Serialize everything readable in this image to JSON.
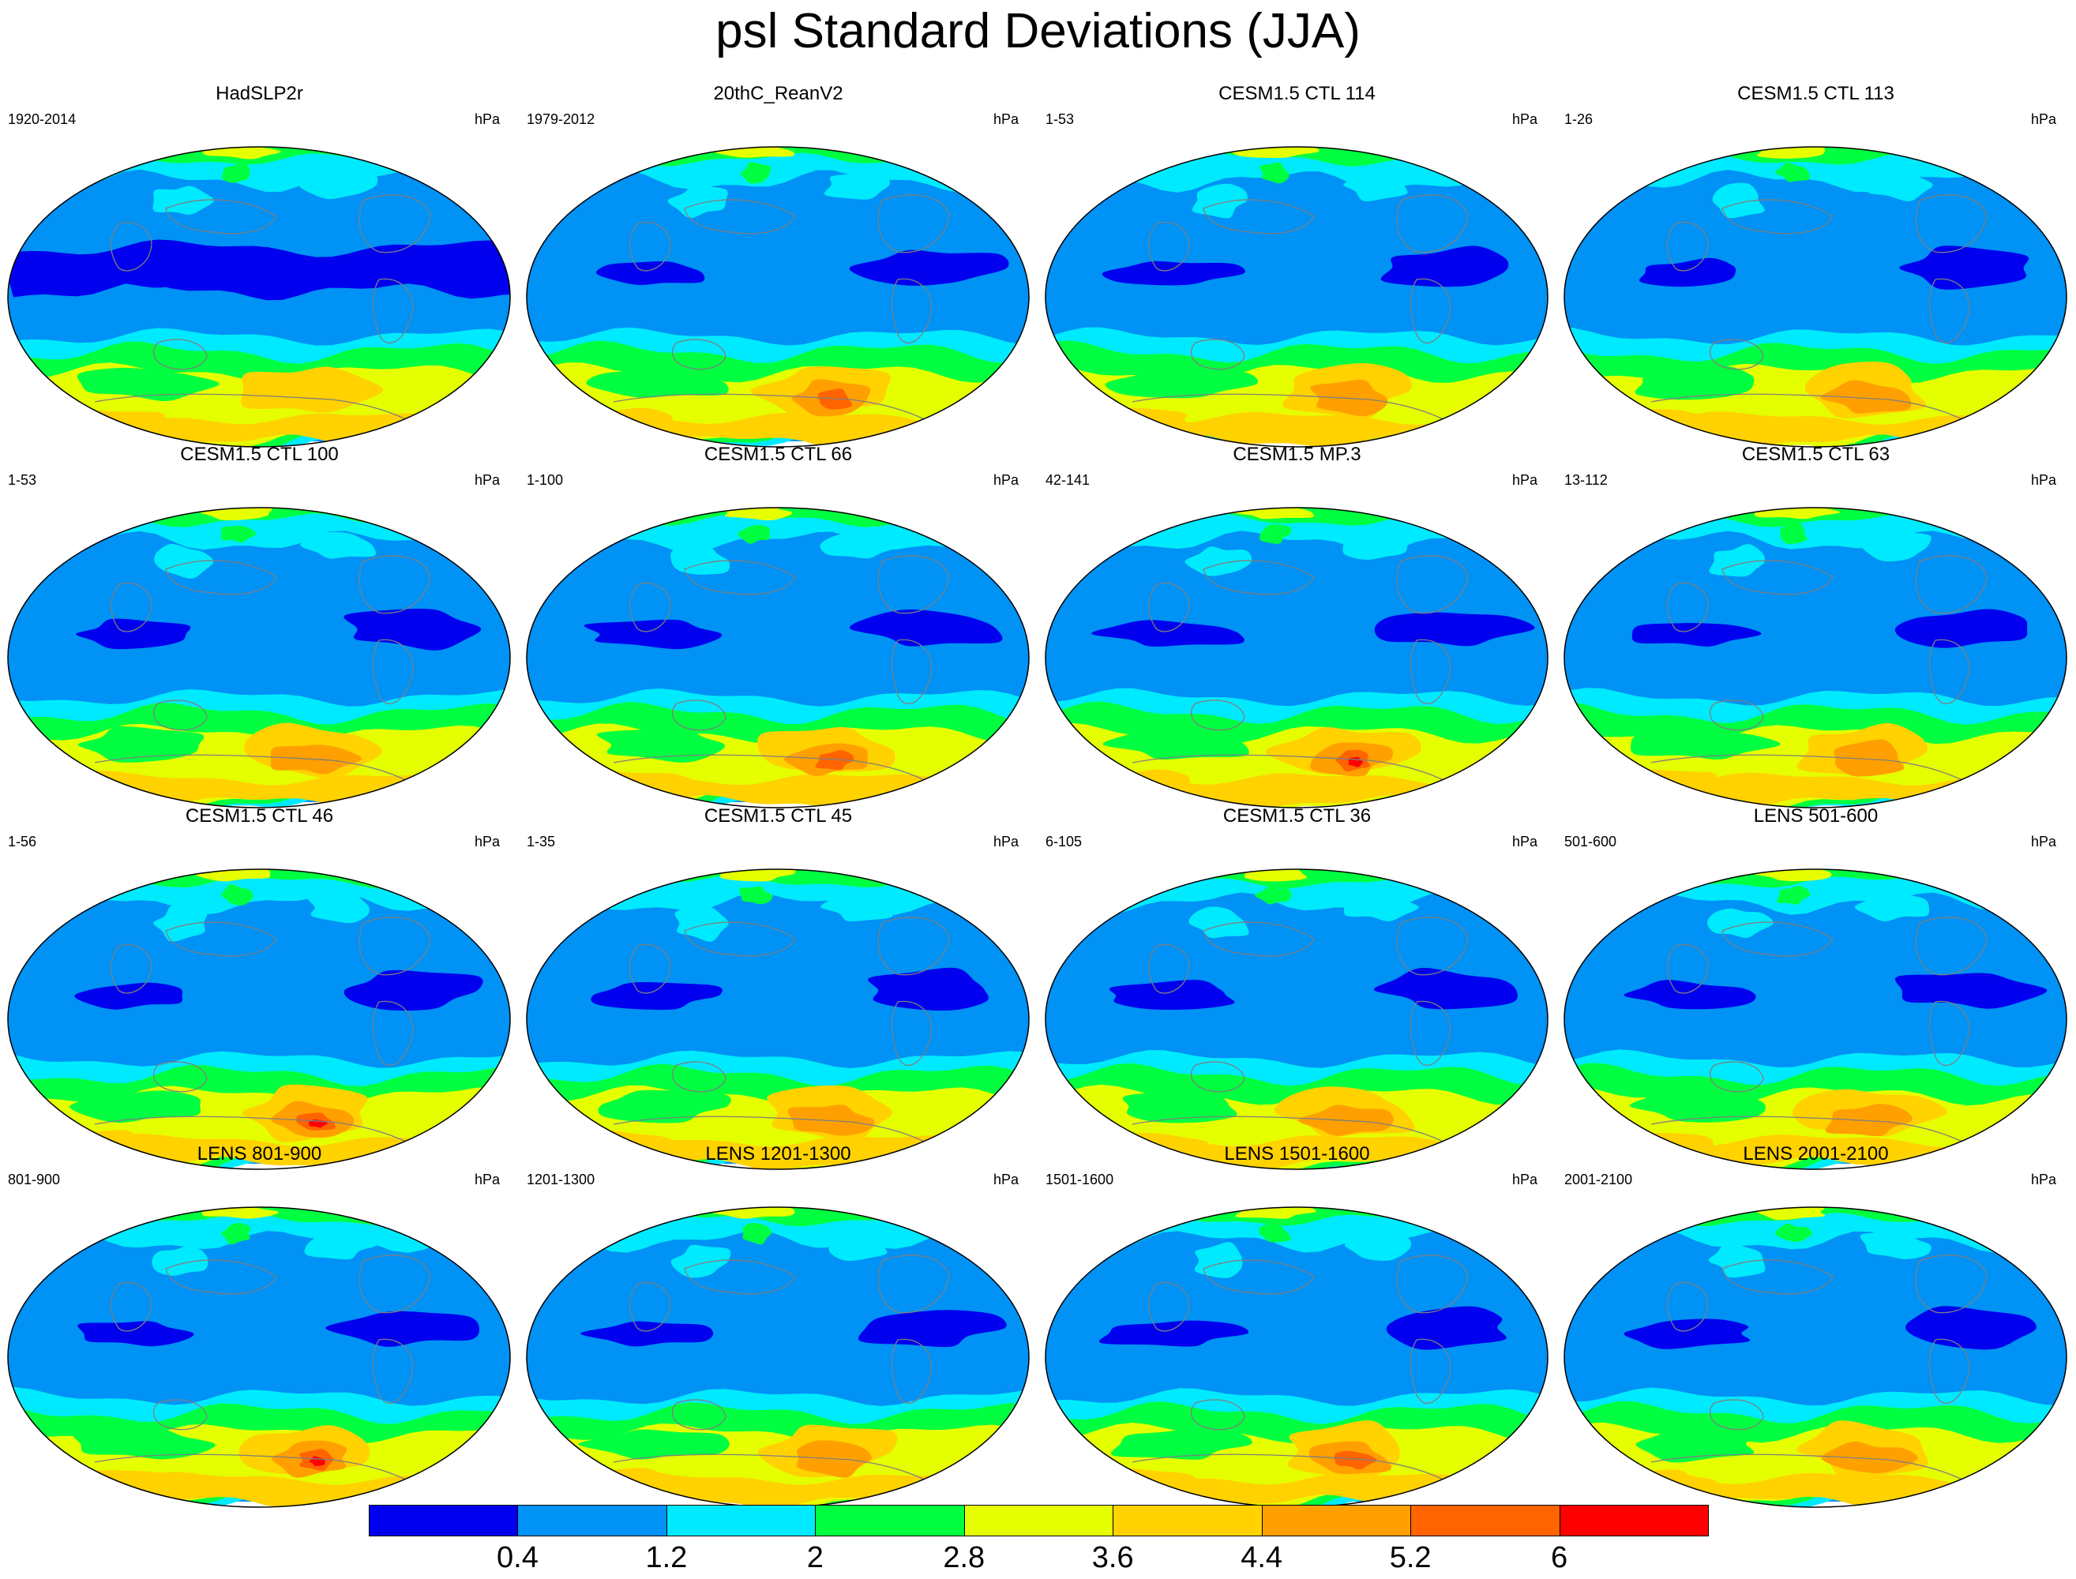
{
  "title": "psl Standard Deviations (JJA)",
  "panels": [
    {
      "title": "HadSLP2r",
      "years": "1920-2014",
      "units": "hPa"
    },
    {
      "title": "20thC_ReanV2",
      "years": "1979-2012",
      "units": "hPa"
    },
    {
      "title": "CESM1.5 CTL 114",
      "years": "1-53",
      "units": "hPa"
    },
    {
      "title": "CESM1.5 CTL 113",
      "years": "1-26",
      "units": "hPa"
    },
    {
      "title": "CESM1.5 CTL 100",
      "years": "1-53",
      "units": "hPa"
    },
    {
      "title": "CESM1.5 CTL 66",
      "years": "1-100",
      "units": "hPa"
    },
    {
      "title": "CESM1.5 MP.3",
      "years": "42-141",
      "units": "hPa"
    },
    {
      "title": "CESM1.5 CTL 63",
      "years": "13-112",
      "units": "hPa"
    },
    {
      "title": "CESM1.5 CTL 46",
      "years": "1-56",
      "units": "hPa"
    },
    {
      "title": "CESM1.5 CTL 45",
      "years": "1-35",
      "units": "hPa"
    },
    {
      "title": "CESM1.5 CTL 36",
      "years": "6-105",
      "units": "hPa"
    },
    {
      "title": "LENS 501-600",
      "years": "501-600",
      "units": "hPa"
    },
    {
      "title": "LENS 801-900",
      "years": "801-900",
      "units": "hPa"
    },
    {
      "title": "LENS 1201-1300",
      "years": "1201-1300",
      "units": "hPa"
    },
    {
      "title": "LENS 1501-1600",
      "years": "1501-1600",
      "units": "hPa"
    },
    {
      "title": "LENS 2001-2100",
      "years": "2001-2100",
      "units": "hPa"
    }
  ],
  "colorbar": {
    "labels": [
      "0.4",
      "1.2",
      "2",
      "2.8",
      "3.6",
      "4.4",
      "5.2",
      "6"
    ],
    "colors": [
      "#0000ee",
      "#0092f5",
      "#00eaff",
      "#00ff40",
      "#e5ff00",
      "#ffd200",
      "#ffa000",
      "#ff6400",
      "#ff0000"
    ]
  }
}
